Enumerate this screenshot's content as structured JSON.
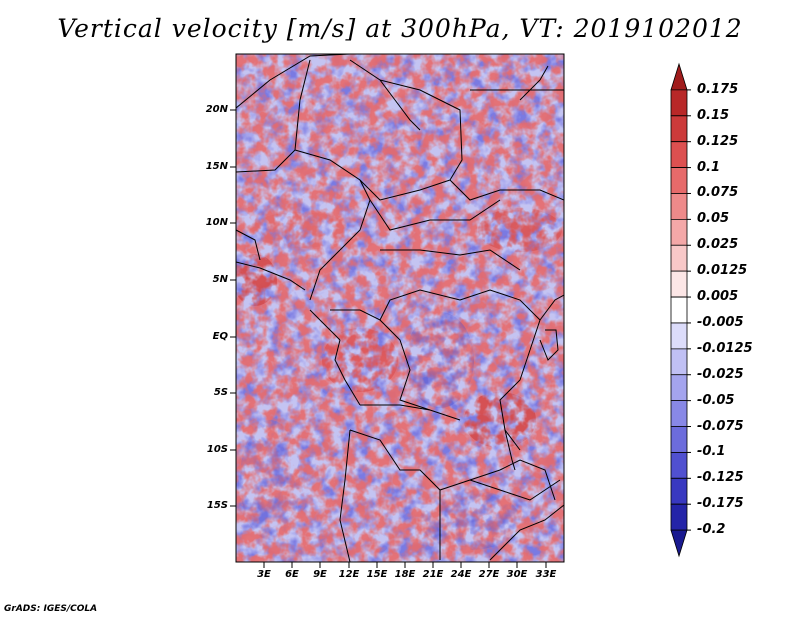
{
  "title": "Vertical velocity [m/s] at 300hPa, VT: 2019102012",
  "credit": "GrADS: IGES/COLA",
  "y_axis_labels": [
    "20N",
    "15N",
    "10N",
    "5N",
    "EQ",
    "5S",
    "10S",
    "15S"
  ],
  "x_axis_labels": [
    "3E",
    "6E",
    "9E",
    "12E",
    "15E",
    "18E",
    "21E",
    "24E",
    "27E",
    "30E",
    "33E"
  ],
  "colorbar": {
    "labels": [
      "0.175",
      "0.15",
      "0.125",
      "0.1",
      "0.075",
      "0.05",
      "0.025",
      "0.0125",
      "0.005",
      "-0.005",
      "-0.0125",
      "-0.025",
      "-0.05",
      "-0.075",
      "-0.1",
      "-0.125",
      "-0.175",
      "-0.2"
    ],
    "colors": [
      "#a01c1c",
      "#b82828",
      "#cc3a3a",
      "#dc5050",
      "#e66a6a",
      "#ee8a8a",
      "#f4a8a8",
      "#f8c8c8",
      "#fce6e6",
      "#ffffff",
      "#dcdcfa",
      "#c0c0f4",
      "#a4a4ee",
      "#8888e6",
      "#6c6cdc",
      "#5050d0",
      "#3838c0",
      "#2424a8",
      "#1a1a90"
    ]
  },
  "colors": {
    "positive": "#d84848",
    "negative": "#6e6ee0",
    "neutral": "#ffffff"
  }
}
